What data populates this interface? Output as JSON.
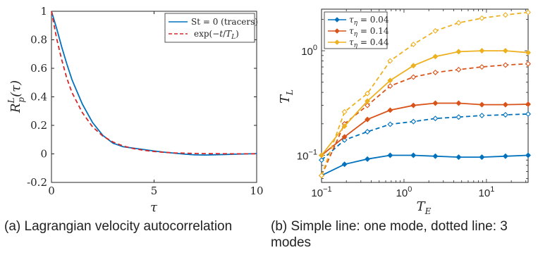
{
  "chart_data": [
    {
      "type": "line",
      "id": "a",
      "xlabel": "τ",
      "ylabel": "R_p^L(τ)",
      "xlim": [
        0,
        10
      ],
      "ylim": [
        -0.2,
        1
      ],
      "xticks": [
        0,
        5,
        10
      ],
      "yticks": [
        -0.2,
        0,
        0.2,
        0.4,
        0.6,
        0.8,
        1
      ],
      "ytick_labels": [
        "-0.2",
        "0",
        "0.2",
        "0.4",
        "0.6",
        "0.8",
        "1"
      ],
      "xtick_labels": [
        "0",
        "5",
        "10"
      ],
      "legend_position": "top-right",
      "series": [
        {
          "name": "St = 0 (tracers)",
          "color": "#0072BD",
          "style": "solid",
          "x": [
            0,
            0.25,
            0.5,
            0.75,
            1,
            1.5,
            2,
            2.5,
            3,
            3.5,
            4,
            4.5,
            5,
            5.5,
            6,
            6.5,
            7,
            7.5,
            8,
            8.5,
            9,
            9.5,
            10
          ],
          "y": [
            1,
            0.88,
            0.75,
            0.63,
            0.52,
            0.35,
            0.22,
            0.13,
            0.075,
            0.05,
            0.04,
            0.03,
            0.02,
            0.012,
            0.005,
            -0.002,
            -0.007,
            -0.008,
            -0.006,
            -0.004,
            -0.002,
            0,
            0.002
          ]
        },
        {
          "name": "exp(−t/T_L)",
          "color": "#D62728",
          "style": "dashed",
          "x": [
            0,
            0.25,
            0.5,
            0.75,
            1,
            1.5,
            2,
            2.5,
            3,
            3.5,
            4,
            4.5,
            5,
            5.5,
            6,
            6.5,
            7,
            7.5,
            8,
            8.5,
            9,
            9.5,
            10
          ],
          "y": [
            1,
            0.81,
            0.66,
            0.53,
            0.43,
            0.29,
            0.19,
            0.125,
            0.083,
            0.055,
            0.037,
            0.025,
            0.017,
            0.011,
            0.007,
            0.005,
            0.003,
            0.002,
            0.0015,
            0.001,
            0.0007,
            0.0005,
            0.0003
          ]
        }
      ],
      "caption": "(a) Lagrangian velocity autocorrelation"
    },
    {
      "type": "line",
      "id": "b",
      "xlabel": "T_E",
      "ylabel": "T_L",
      "xscale": "log",
      "yscale": "log",
      "xlim": [
        0.1,
        32
      ],
      "ylim": [
        0.055,
        2.5
      ],
      "xticks": [
        0.1,
        1,
        10
      ],
      "xtick_labels": [
        "10^{-1}",
        "10^{0}",
        "10^{1}"
      ],
      "yticks": [
        0.1,
        1
      ],
      "ytick_labels": [
        "10^{-1}",
        "10^{0}"
      ],
      "legend_position": "top-left",
      "legend_entries": [
        "τ_η = 0.04",
        "τ_η = 0.14",
        "τ_η = 0.44"
      ],
      "x": [
        0.1,
        0.19,
        0.36,
        0.68,
        1.3,
        2.4,
        4.6,
        8.8,
        17,
        32
      ],
      "series": [
        {
          "tau_eta": "0.04",
          "modes": "one",
          "color": "#0072BD",
          "style": "solid",
          "y": [
            0.064,
            0.082,
            0.092,
            0.1,
            0.1,
            0.098,
            0.096,
            0.096,
            0.098,
            0.1
          ]
        },
        {
          "tau_eta": "0.04",
          "modes": "three",
          "color": "#0072BD",
          "style": "dashed",
          "y": [
            0.09,
            0.14,
            0.168,
            0.198,
            0.21,
            0.225,
            0.232,
            0.24,
            0.244,
            0.248
          ]
        },
        {
          "tau_eta": "0.14",
          "modes": "one",
          "color": "#D95319",
          "style": "solid",
          "y": [
            0.1,
            0.15,
            0.22,
            0.27,
            0.3,
            0.315,
            0.315,
            0.305,
            0.305,
            0.308
          ]
        },
        {
          "tau_eta": "0.14",
          "modes": "three",
          "color": "#D95319",
          "style": "dashed",
          "y": [
            0.064,
            0.2,
            0.3,
            0.46,
            0.56,
            0.62,
            0.66,
            0.7,
            0.73,
            0.75
          ]
        },
        {
          "tau_eta": "0.44",
          "modes": "one",
          "color": "#EDB120",
          "style": "solid",
          "y": [
            0.1,
            0.19,
            0.33,
            0.52,
            0.72,
            0.88,
            0.98,
            1.0,
            1.0,
            0.96
          ]
        },
        {
          "tau_eta": "0.44",
          "modes": "three",
          "color": "#EDB120",
          "style": "dashed",
          "y": [
            0.064,
            0.26,
            0.39,
            0.8,
            1.15,
            1.55,
            1.85,
            2.05,
            2.2,
            2.33
          ]
        }
      ],
      "caption": "(b) Simple line: one mode, dotted line: 3 modes"
    }
  ],
  "captions": {
    "a": "(a) Lagrangian velocity autocorrelation",
    "b": "(b) Simple line: one mode, dotted line: 3 modes"
  }
}
